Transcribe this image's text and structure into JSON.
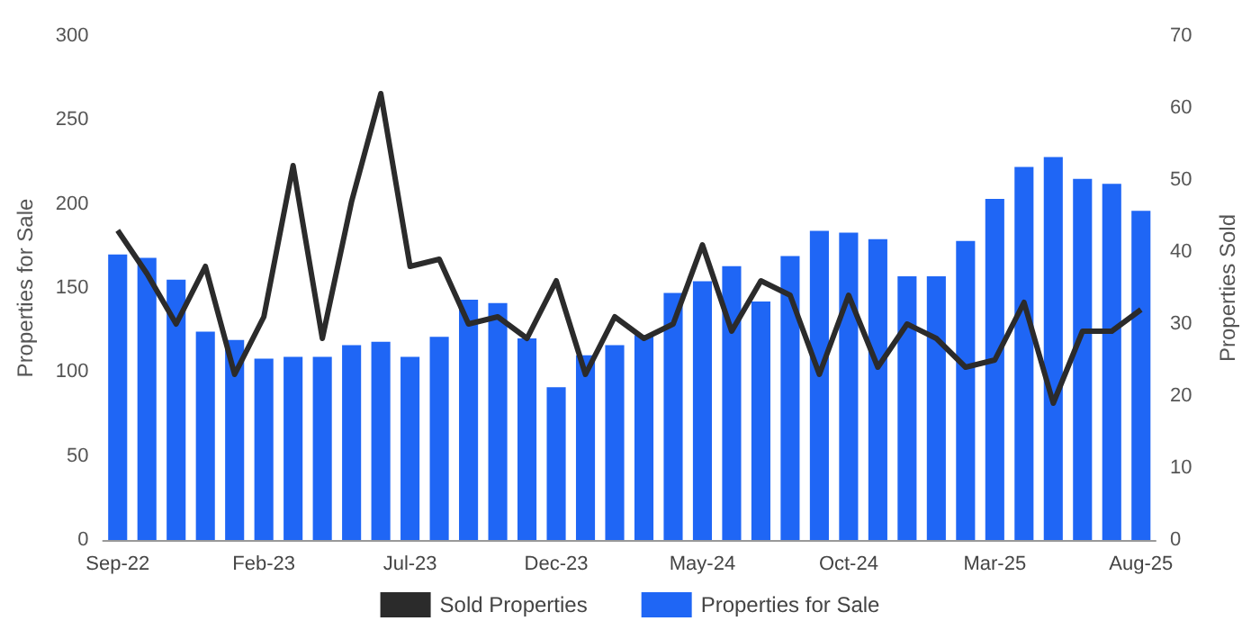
{
  "chart_data": {
    "type": "bar",
    "ylabel": "Properties for Sale",
    "y2label": "Properties Sold",
    "categories": [
      "Sep-22",
      null,
      null,
      null,
      null,
      "Feb-23",
      null,
      null,
      null,
      null,
      "Jul-23",
      null,
      null,
      null,
      null,
      "Dec-23",
      null,
      null,
      null,
      null,
      "May-24",
      null,
      null,
      null,
      null,
      "Oct-24",
      null,
      null,
      null,
      null,
      "Mar-25",
      null,
      null,
      null,
      null,
      "Aug-25"
    ],
    "series": [
      {
        "name": "Sold Properties",
        "type": "line",
        "axis": "y2",
        "color": "#2b2b2b",
        "values": [
          43,
          37,
          30,
          38,
          23,
          31,
          52,
          28,
          47,
          62,
          38,
          39,
          30,
          31,
          28,
          36,
          23,
          31,
          28,
          30,
          41,
          29,
          36,
          34,
          23,
          34,
          24,
          30,
          28,
          24,
          25,
          33,
          19,
          29,
          29,
          32
        ]
      },
      {
        "name": "Properties for Sale",
        "color": "#1f66f5",
        "values": [
          170,
          168,
          155,
          124,
          119,
          108,
          109,
          109,
          116,
          118,
          109,
          121,
          143,
          141,
          120,
          91,
          110,
          116,
          122,
          147,
          154,
          163,
          142,
          169,
          184,
          183,
          179,
          157,
          157,
          178,
          203,
          222,
          228,
          215,
          212,
          196
        ]
      }
    ],
    "ylim": [
      0,
      300
    ],
    "yticks": [
      0,
      50,
      100,
      150,
      200,
      250,
      300
    ],
    "y2lim": [
      0,
      70
    ],
    "y2ticks": [
      0,
      10,
      20,
      30,
      40,
      50,
      60,
      70
    ],
    "grid": false,
    "legend": "bottom",
    "marker": "none",
    "line_style": "solid"
  }
}
